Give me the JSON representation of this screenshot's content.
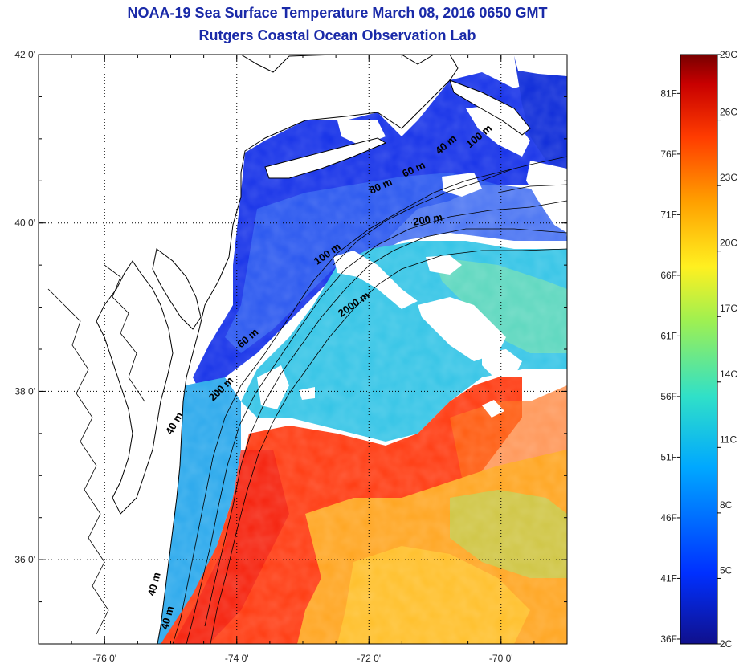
{
  "header": {
    "title": "NOAA-19 Sea Surface Temperature March 08, 2016 0650 GMT",
    "subtitle": "Rutgers Coastal Ocean Observation Lab"
  },
  "map": {
    "lat_ticks": [
      {
        "value": 42,
        "label": "42 0'"
      },
      {
        "value": 40,
        "label": "40 0'"
      },
      {
        "value": 38,
        "label": "38 0'"
      },
      {
        "value": 36,
        "label": "36 0'"
      }
    ],
    "lon_ticks": [
      {
        "value": -76,
        "label": "-76 0'"
      },
      {
        "value": -74,
        "label": "-74 0'"
      },
      {
        "value": -72,
        "label": "-72 0'"
      },
      {
        "value": -70,
        "label": "-70 0'"
      }
    ],
    "lat_range": [
      35,
      42
    ],
    "lon_range": [
      -77,
      -69
    ],
    "contour_labels": [
      {
        "text": "40 m",
        "lon": -70.8,
        "lat": 40.9,
        "angle": -40
      },
      {
        "text": "100 m",
        "lon": -70.3,
        "lat": 41.0,
        "angle": -40
      },
      {
        "text": "60 m",
        "lon": -71.3,
        "lat": 40.6,
        "angle": -25
      },
      {
        "text": "80 m",
        "lon": -71.8,
        "lat": 40.4,
        "angle": -25
      },
      {
        "text": "200 m",
        "lon": -71.1,
        "lat": 40.0,
        "angle": -10
      },
      {
        "text": "100 m",
        "lon": -72.6,
        "lat": 39.6,
        "angle": -35
      },
      {
        "text": "2000 m",
        "lon": -72.2,
        "lat": 39.0,
        "angle": -35
      },
      {
        "text": "60 m",
        "lon": -73.8,
        "lat": 38.6,
        "angle": -40
      },
      {
        "text": "200 m",
        "lon": -74.2,
        "lat": 38.0,
        "angle": -45
      },
      {
        "text": "40 m",
        "lon": -74.9,
        "lat": 37.6,
        "angle": -60
      },
      {
        "text": "40 m",
        "lon": -75.2,
        "lat": 35.7,
        "angle": -75
      },
      {
        "text": "40 m",
        "lon": -75.0,
        "lat": 35.3,
        "angle": -75
      }
    ]
  },
  "colorbar": {
    "celsius": [
      "29C",
      "26C",
      "23C",
      "20C",
      "17C",
      "14C",
      "11C",
      "8C",
      "5C",
      "2C"
    ],
    "fahrenheit": [
      "81F",
      "76F",
      "71F",
      "66F",
      "61F",
      "56F",
      "51F",
      "46F",
      "41F",
      "36F"
    ],
    "range_c": [
      2,
      29
    ],
    "colors": [
      "#0a0a8c",
      "#0033ff",
      "#00a8ff",
      "#30e0d0",
      "#a8f050",
      "#fff020",
      "#ffa000",
      "#ff4000",
      "#d00000",
      "#800000"
    ]
  }
}
